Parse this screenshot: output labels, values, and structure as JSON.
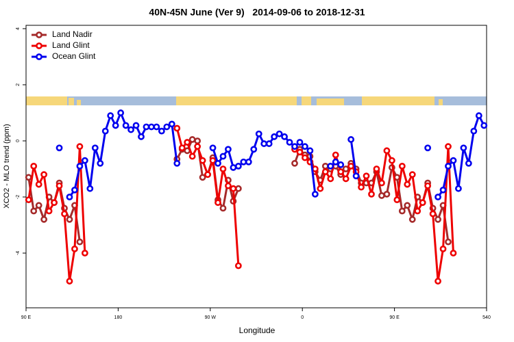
{
  "chart_data": {
    "type": "line",
    "title": "40N-45N June (Ver 9)   2014-09-06 to 2018-12-31",
    "xlabel": "Longitude",
    "ylabel": "XCO2 - MLO trend (ppm)",
    "x": [
      92.5,
      97.5,
      102.5,
      107.5,
      112.5,
      117.5,
      122.5,
      127.5,
      132.5,
      137.5,
      142.5,
      147.5,
      152.5,
      157.5,
      162.5,
      167.5,
      172.5,
      177.5,
      182.5,
      187.5,
      192.5,
      197.5,
      202.5,
      207.5,
      212.5,
      217.5,
      222.5,
      227.5,
      232.5,
      237.5,
      242.5,
      247.5,
      252.5,
      257.5,
      262.5,
      267.5,
      272.5,
      277.5,
      282.5,
      287.5,
      292.5,
      297.5,
      302.5,
      307.5,
      312.5,
      317.5,
      322.5,
      327.5,
      332.5,
      337.5,
      342.5,
      347.5,
      352.5,
      357.5,
      362.5,
      367.5,
      372.5,
      377.5,
      382.5,
      387.5,
      392.5,
      397.5,
      402.5,
      407.5,
      412.5,
      417.5,
      422.5,
      427.5,
      432.5,
      437.5,
      442.5,
      447.5,
      452.5,
      457.5,
      462.5,
      467.5,
      472.5,
      477.5,
      482.5,
      487.5,
      492.5,
      497.5,
      502.5,
      507.5,
      512.5,
      517.5,
      522.5,
      527.5,
      532.5,
      537.5
    ],
    "series": [
      {
        "name": "Land Nadir",
        "color": "#a52a2a",
        "values": [
          -1.3,
          -2.5,
          -2.3,
          -2.8,
          -2.0,
          -2.2,
          -1.5,
          -2.4,
          -2.8,
          -2.3,
          -3.6,
          null,
          null,
          null,
          null,
          null,
          null,
          null,
          null,
          null,
          null,
          null,
          null,
          null,
          null,
          null,
          null,
          null,
          null,
          -0.65,
          -0.3,
          -0.35,
          0.05,
          0.0,
          -1.3,
          -1.2,
          -0.6,
          -2.1,
          -2.4,
          -1.4,
          -2.15,
          -1.7,
          null,
          null,
          null,
          null,
          null,
          null,
          null,
          null,
          null,
          null,
          -0.8,
          -0.3,
          -0.5,
          -0.55,
          -1.1,
          -1.4,
          -0.9,
          -1.0,
          -0.9,
          -1.2,
          -1.0,
          -0.8,
          -1.0,
          -1.5,
          -1.5,
          -1.5,
          -1.1,
          -1.95,
          -1.9,
          -0.95,
          -1.3,
          -2.5,
          -2.3,
          -2.8,
          -2.0,
          -2.2,
          -1.5,
          -2.4,
          -2.8,
          -2.3,
          -3.6,
          null,
          null,
          null,
          null,
          null,
          null,
          null
        ]
      },
      {
        "name": "Land Glint",
        "color": "#ee0000",
        "values": [
          -2.1,
          -0.9,
          -1.55,
          -1.2,
          -2.5,
          -2.2,
          -1.6,
          -2.6,
          -5.0,
          -3.85,
          -0.2,
          -4.0,
          null,
          null,
          null,
          null,
          null,
          null,
          null,
          null,
          null,
          null,
          null,
          null,
          null,
          null,
          null,
          null,
          null,
          0.45,
          -0.25,
          -0.05,
          -0.55,
          -0.2,
          -0.7,
          -1.2,
          -0.7,
          -2.2,
          -1.0,
          -1.6,
          -1.7,
          -4.45,
          null,
          null,
          null,
          null,
          null,
          null,
          null,
          null,
          null,
          null,
          -0.3,
          -0.4,
          -0.6,
          -0.75,
          -1.0,
          -1.7,
          -1.1,
          -1.35,
          -0.5,
          -1.1,
          -1.35,
          -0.9,
          -1.1,
          -1.65,
          -1.25,
          -1.9,
          -1.0,
          -1.5,
          -0.35,
          -0.7,
          -2.1,
          -0.9,
          -1.55,
          -1.2,
          -2.5,
          -2.2,
          -1.6,
          -2.6,
          -5.0,
          -3.85,
          -0.2,
          -4.0,
          null,
          null,
          null,
          null,
          null,
          null
        ]
      },
      {
        "name": "Ocean Glint",
        "color": "#0000ee",
        "values": [
          null,
          null,
          null,
          null,
          null,
          null,
          -0.25,
          null,
          -2.0,
          -1.75,
          -0.9,
          -0.7,
          -1.7,
          -0.25,
          -0.8,
          0.35,
          0.9,
          0.55,
          1.0,
          0.55,
          0.4,
          0.55,
          0.15,
          0.5,
          0.5,
          0.5,
          0.35,
          0.5,
          0.6,
          -0.8,
          null,
          null,
          null,
          null,
          null,
          null,
          -0.25,
          -0.8,
          -0.55,
          -0.3,
          -0.95,
          -0.9,
          -0.75,
          -0.75,
          -0.3,
          0.25,
          -0.1,
          -0.1,
          0.15,
          0.25,
          0.15,
          -0.05,
          -0.2,
          -0.05,
          -0.2,
          -0.35,
          -1.9,
          null,
          null,
          -0.9,
          -0.75,
          -0.85,
          null,
          0.05,
          -1.25,
          null,
          null,
          null,
          null,
          null,
          null,
          null,
          null,
          null,
          null,
          null,
          null,
          null,
          -0.25,
          null,
          -2.0,
          -1.75,
          -0.9,
          -0.7,
          -1.7,
          -0.25,
          -0.8,
          0.35,
          0.9,
          0.55
        ]
      }
    ],
    "xlim": [
      90,
      540
    ],
    "xticks": [
      {
        "value": 90,
        "label": "90 E"
      },
      180,
      {
        "value": 270,
        "label": "90 W"
      },
      {
        "value": 360,
        "label": "0"
      },
      {
        "value": 450,
        "label": "90 E"
      },
      540
    ],
    "ylim": [
      -5.95,
      4.12
    ],
    "yticks": [
      -4,
      -2,
      0,
      2,
      4
    ],
    "legend": "top-left"
  }
}
